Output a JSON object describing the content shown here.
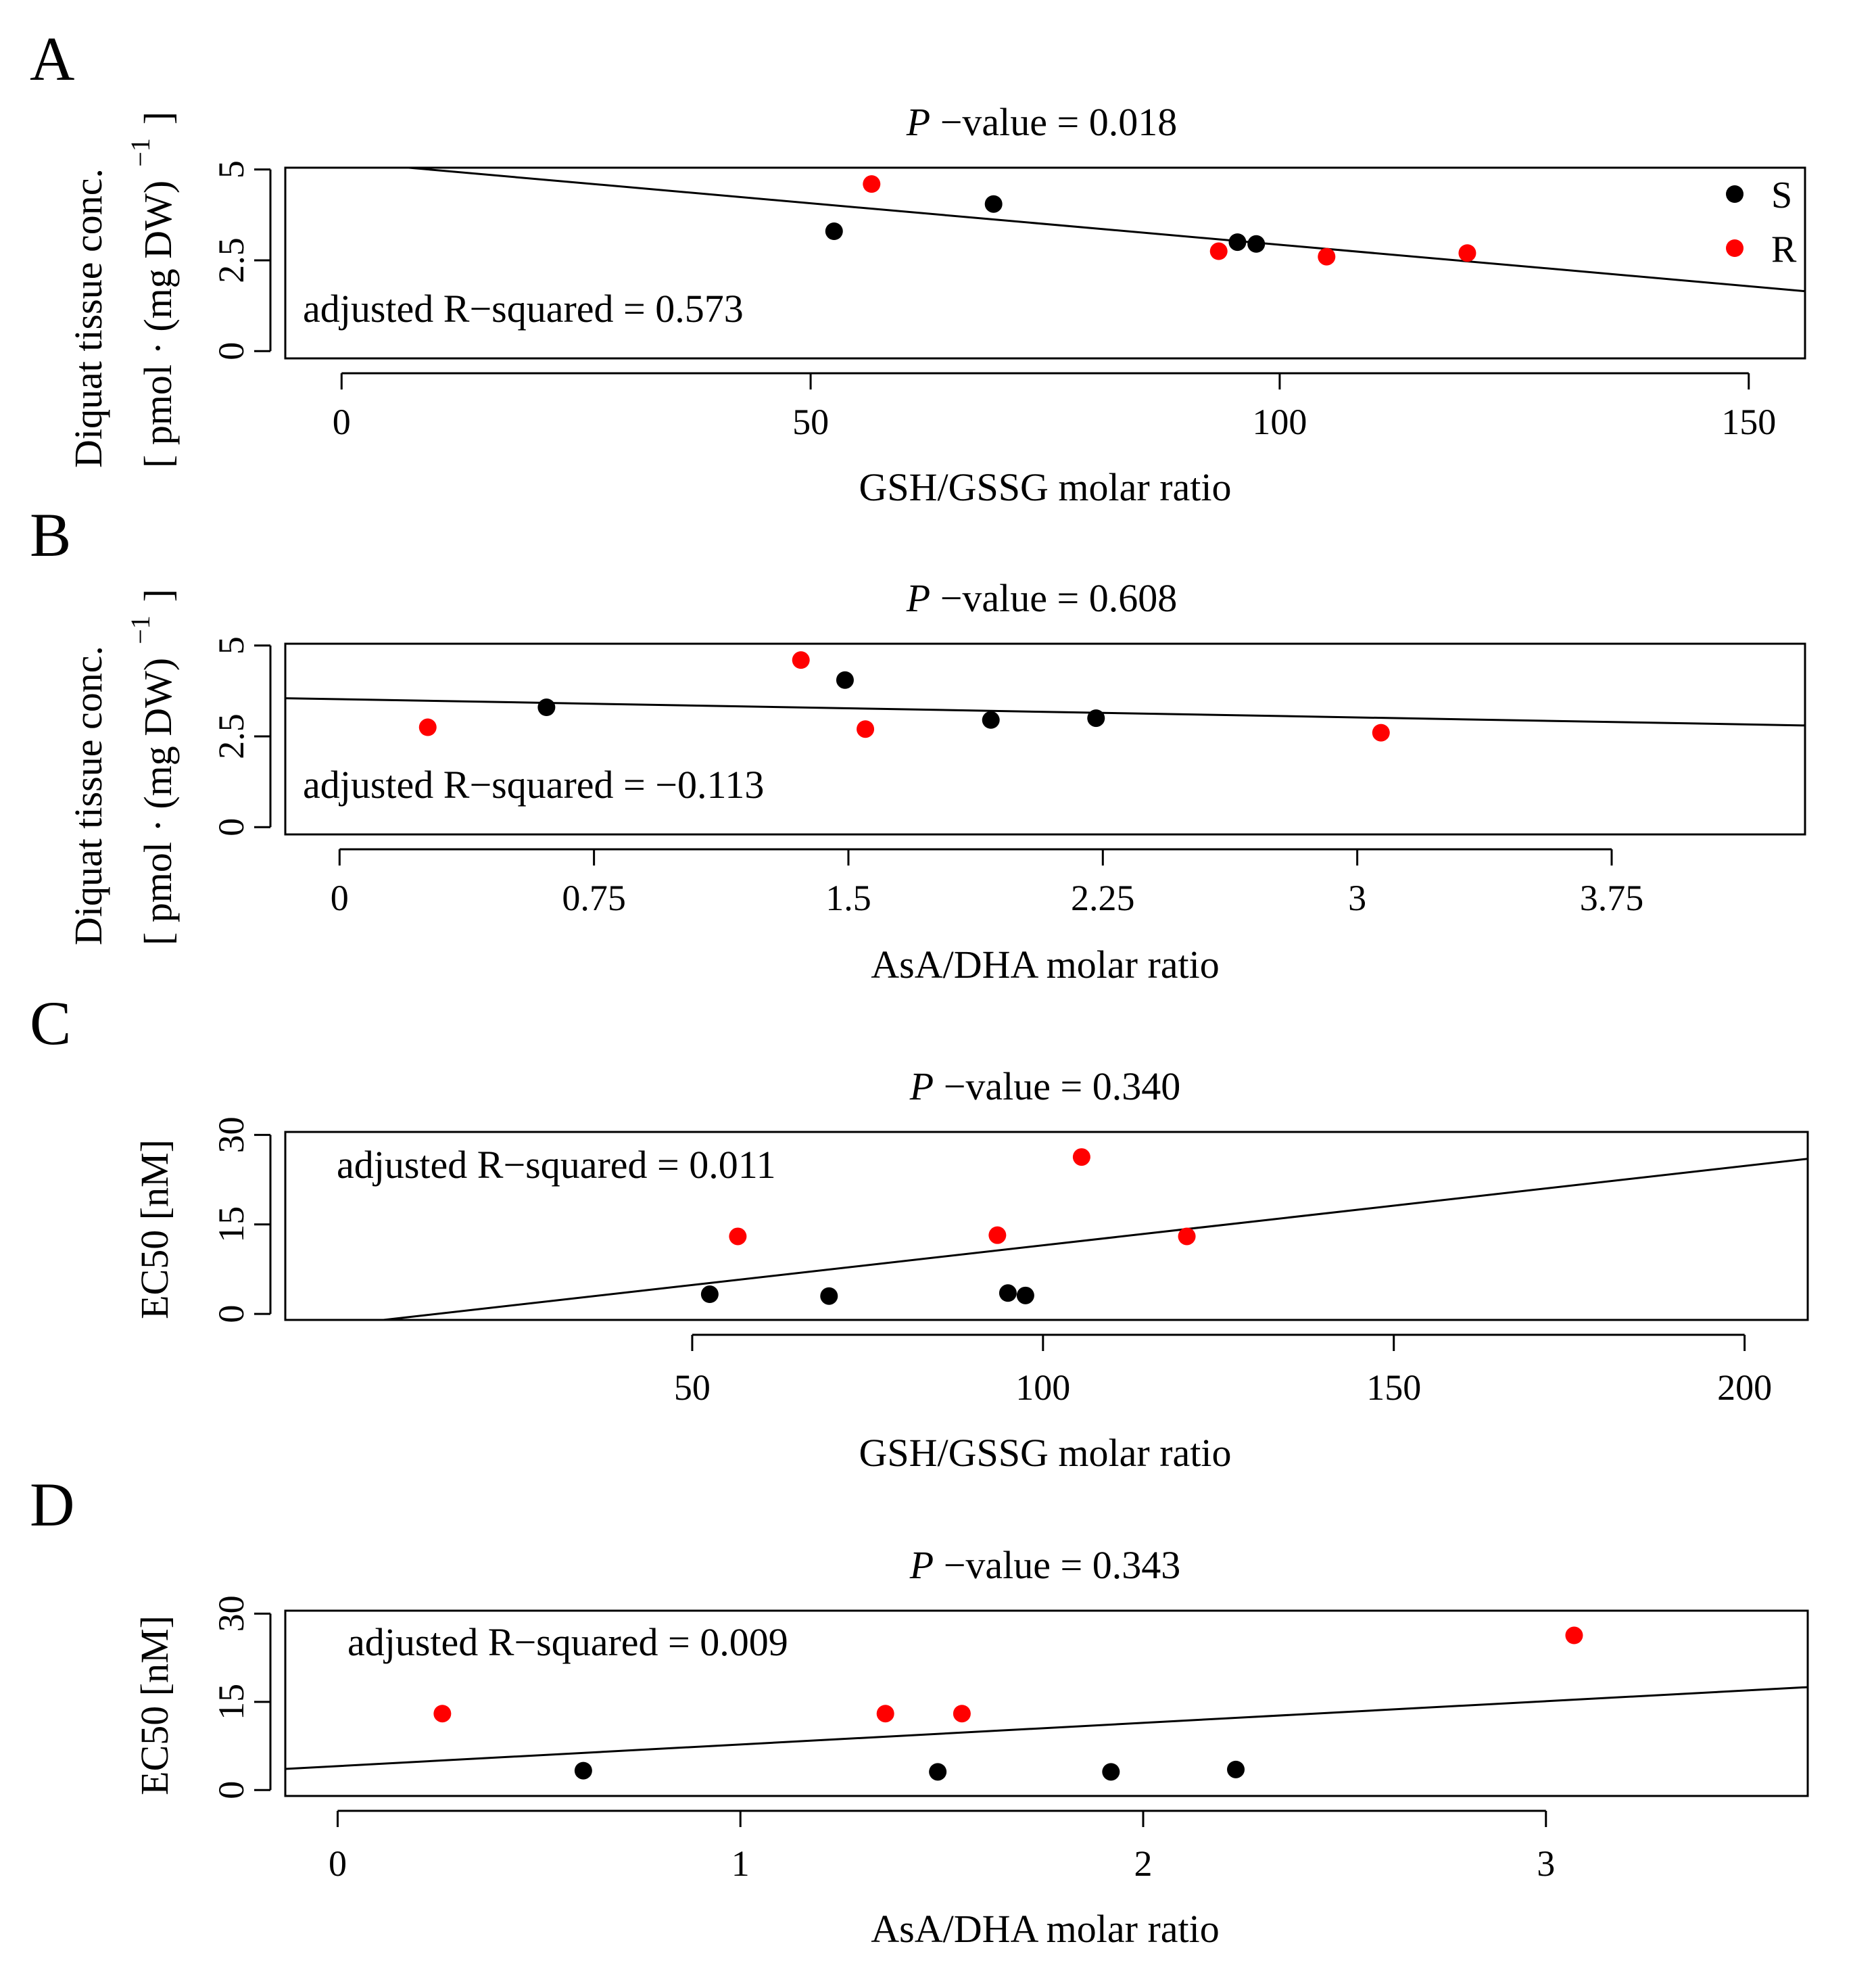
{
  "colors": {
    "S": "#000000",
    "R": "#ff0000",
    "line": "#000000"
  },
  "chart_data": [
    {
      "panel": "A",
      "type": "scatter",
      "title_italic": "P",
      "title_rest": " −value = 0.018",
      "xlabel": "GSH/GSSG molar ratio",
      "ylabel_line1": "Diquat tissue conc.",
      "ylabel_line2": "[ pmol · (mg DW)",
      "ylabel_sup": "−1",
      "ylabel_close": "]",
      "xlim": [
        -6,
        156
      ],
      "ylim": [
        -0.2,
        5.05
      ],
      "xticks": [
        0,
        50,
        100,
        150
      ],
      "xtick_labels": [
        "0",
        "50",
        "100",
        "150"
      ],
      "yticks": [
        0,
        2.5,
        5
      ],
      "ytick_labels": [
        "0",
        "2.5",
        "5"
      ],
      "annotation": "adjusted R−squared = 0.573",
      "annotation_pos": "bottom-left",
      "fit": {
        "x0": -6,
        "y0": 5.35,
        "x1": 156,
        "y1": 1.65
      },
      "legend": {
        "position": "top-right",
        "entries": [
          {
            "label": "S",
            "group": "S"
          },
          {
            "label": "R",
            "group": "R"
          }
        ]
      },
      "series": [
        {
          "name": "S",
          "points": [
            [
              52.5,
              3.3
            ],
            [
              69.5,
              4.05
            ],
            [
              95.5,
              3.0
            ],
            [
              97.5,
              2.95
            ]
          ]
        },
        {
          "name": "R",
          "points": [
            [
              56.5,
              4.6
            ],
            [
              93.5,
              2.75
            ],
            [
              105,
              2.6
            ],
            [
              120,
              2.7
            ]
          ]
        }
      ]
    },
    {
      "panel": "B",
      "type": "scatter",
      "title_italic": "P",
      "title_rest": " −value = 0.608",
      "xlabel": "AsA/DHA molar ratio",
      "ylabel_line1": "Diquat tissue conc.",
      "ylabel_line2": "[ pmol · (mg DW)",
      "ylabel_sup": "−1",
      "ylabel_close": "]",
      "xlim": [
        -0.16,
        4.32
      ],
      "ylim": [
        -0.2,
        5.05
      ],
      "xticks": [
        0,
        0.75,
        1.5,
        2.25,
        3,
        3.75
      ],
      "xtick_labels": [
        "0",
        "0.75",
        "1.5",
        "2.25",
        "3",
        "3.75"
      ],
      "yticks": [
        0,
        2.5,
        5
      ],
      "ytick_labels": [
        "0",
        "2.5",
        "5"
      ],
      "annotation": "adjusted R−squared = −0.113",
      "annotation_pos": "bottom-left",
      "fit": {
        "x0": -0.16,
        "y0": 3.55,
        "x1": 4.32,
        "y1": 2.8
      },
      "legend": null,
      "series": [
        {
          "name": "S",
          "points": [
            [
              0.61,
              3.3
            ],
            [
              1.49,
              4.05
            ],
            [
              1.92,
              2.95
            ],
            [
              2.23,
              3.0
            ]
          ]
        },
        {
          "name": "R",
          "points": [
            [
              0.26,
              2.75
            ],
            [
              1.36,
              4.6
            ],
            [
              1.55,
              2.7
            ],
            [
              3.07,
              2.6
            ]
          ]
        }
      ]
    },
    {
      "panel": "C",
      "type": "scatter",
      "title_italic": "P",
      "title_rest": " −value = 0.340",
      "xlabel": "GSH/GSSG molar ratio",
      "ylabel_line1": "EC50 [nM]",
      "xlim": [
        -8,
        209
      ],
      "ylim": [
        -1,
        30.5
      ],
      "xticks": [
        50,
        100,
        150,
        200
      ],
      "xtick_labels": [
        "50",
        "100",
        "150",
        "200"
      ],
      "yticks": [
        0,
        15,
        30
      ],
      "ytick_labels": [
        "0",
        "15",
        "30"
      ],
      "annotation": "adjusted R−squared = 0.011",
      "annotation_pos": "top-left",
      "fit": {
        "x0": 6,
        "y0": -1,
        "x1": 209,
        "y1": 26
      },
      "legend": null,
      "series": [
        {
          "name": "S",
          "points": [
            [
              52.5,
              3.3
            ],
            [
              69.5,
              3.0
            ],
            [
              95,
              3.5
            ],
            [
              97.5,
              3.1
            ]
          ]
        },
        {
          "name": "R",
          "points": [
            [
              56.5,
              13
            ],
            [
              93.5,
              13.2
            ],
            [
              105.5,
              26.3
            ],
            [
              120.5,
              13
            ]
          ]
        }
      ]
    },
    {
      "panel": "D",
      "type": "scatter",
      "title_italic": "P",
      "title_rest": " −value = 0.343",
      "xlabel": "AsA/DHA molar ratio",
      "ylabel_line1": "EC50 [nM]",
      "xlim": [
        -0.13,
        3.65
      ],
      "ylim": [
        -1,
        30.5
      ],
      "xticks": [
        0,
        1,
        2,
        3
      ],
      "xtick_labels": [
        "0",
        "1",
        "2",
        "3"
      ],
      "yticks": [
        0,
        15,
        30
      ],
      "ytick_labels": [
        "0",
        "15",
        "30"
      ],
      "annotation": "adjusted R−squared = 0.009",
      "annotation_pos": "top-left",
      "fit": {
        "x0": -0.13,
        "y0": 3.6,
        "x1": 3.65,
        "y1": 17.5
      },
      "legend": null,
      "series": [
        {
          "name": "S",
          "points": [
            [
              0.61,
              3.3
            ],
            [
              1.49,
              3.1
            ],
            [
              1.92,
              3.1
            ],
            [
              2.23,
              3.5
            ]
          ]
        },
        {
          "name": "R",
          "points": [
            [
              0.26,
              13
            ],
            [
              1.36,
              13
            ],
            [
              1.55,
              13
            ],
            [
              3.07,
              26.3
            ]
          ]
        }
      ]
    }
  ]
}
